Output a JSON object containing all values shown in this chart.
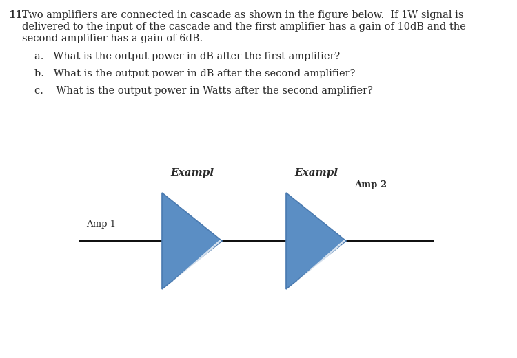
{
  "background_color": "#ffffff",
  "text_color": "#2b2b2b",
  "line1": "Two amplifiers are connected in cascade as shown in the figure below.  If 1W signal is",
  "line2": "delivered to the input of the cascade and the first amplifier has a gain of 10dB and the",
  "line3": "second amplifier has a gain of 6dB.",
  "question_a": "a.   What is the output power in dB after the first amplifier?",
  "question_b": "b.   What is the output power in dB after the second amplifier?",
  "question_c": "c.    What is the output power in Watts after the second amplifier?",
  "amp1_label": "Amp 1",
  "amp2_label": "Amp 2",
  "exampl1_label": "Exampl",
  "exampl2_label": "Exampl",
  "triangle_color": "#5b8ec4",
  "triangle_edge_color": "#4a7ab0",
  "line_color": "#111111",
  "font_size_body": 10.5,
  "font_size_label": 9.5,
  "font_size_exampl": 11,
  "font_size_number": 10.5
}
